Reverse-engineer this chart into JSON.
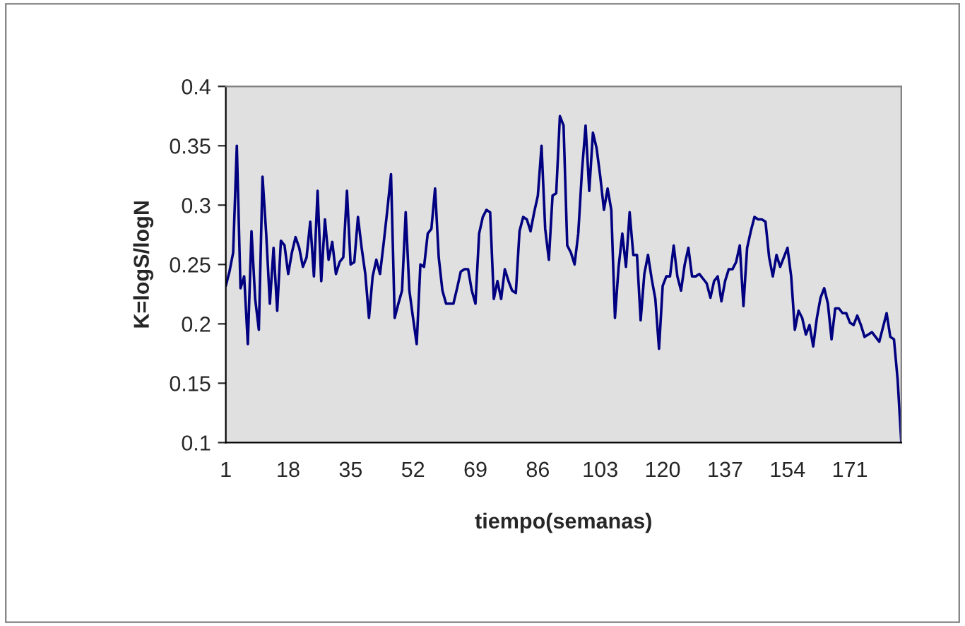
{
  "chart_data": {
    "type": "line",
    "xlabel": "tiempo(semanas)",
    "ylabel": "K=logS/logN",
    "categories": [
      "1",
      null,
      null,
      null,
      null,
      null,
      null,
      null,
      null,
      null,
      null,
      null,
      null,
      null,
      null,
      null,
      null,
      "18",
      null,
      null,
      null,
      null,
      null,
      null,
      null,
      null,
      null,
      null,
      null,
      null,
      null,
      null,
      null,
      null,
      "35",
      null,
      null,
      null,
      null,
      null,
      null,
      null,
      null,
      null,
      null,
      null,
      null,
      null,
      null,
      null,
      null,
      "52",
      null,
      null,
      null,
      null,
      null,
      null,
      null,
      null,
      null,
      null,
      null,
      null,
      null,
      null,
      null,
      null,
      "69",
      null,
      null,
      null,
      null,
      null,
      null,
      null,
      null,
      null,
      null,
      null,
      null,
      null,
      null,
      null,
      null,
      "86",
      null,
      null,
      null,
      null,
      null,
      null,
      null,
      null,
      null,
      null,
      null,
      null,
      null,
      null,
      null,
      null,
      "103",
      null,
      null,
      null,
      null,
      null,
      null,
      null,
      null,
      null,
      null,
      null,
      null,
      null,
      null,
      null,
      null,
      "120",
      null,
      null,
      null,
      null,
      null,
      null,
      null,
      null,
      null,
      null,
      null,
      null,
      null,
      null,
      null,
      null,
      "137",
      null,
      null,
      null,
      null,
      null,
      null,
      null,
      null,
      null,
      null,
      null,
      null,
      null,
      null,
      null,
      null,
      "154",
      null,
      null,
      null,
      null,
      null,
      null,
      null,
      null,
      null,
      null,
      null,
      null,
      null,
      null,
      null,
      null,
      "171",
      null,
      null,
      null,
      null,
      null,
      null,
      null,
      null,
      null,
      null,
      null,
      null,
      null,
      null
    ],
    "series": [
      {
        "color": "#000080",
        "values": [
          0.232,
          0.244,
          0.26,
          0.35,
          0.23,
          0.24,
          0.183,
          0.278,
          0.221,
          0.195,
          0.324,
          0.276,
          0.217,
          0.264,
          0.211,
          0.27,
          0.266,
          0.242,
          0.26,
          0.273,
          0.264,
          0.248,
          0.256,
          0.286,
          0.24,
          0.312,
          0.236,
          0.288,
          0.254,
          0.269,
          0.242,
          0.252,
          0.256,
          0.312,
          0.25,
          0.252,
          0.29,
          0.264,
          0.242,
          0.205,
          0.24,
          0.254,
          0.242,
          0.268,
          0.296,
          0.326,
          0.205,
          0.217,
          0.228,
          0.294,
          0.228,
          0.205,
          0.183,
          0.25,
          0.248,
          0.276,
          0.28,
          0.314,
          0.256,
          0.228,
          0.217,
          0.217,
          0.217,
          0.23,
          0.244,
          0.246,
          0.246,
          0.228,
          0.217,
          0.276,
          0.29,
          0.296,
          0.294,
          0.221,
          0.236,
          0.221,
          0.246,
          0.236,
          0.228,
          0.226,
          0.278,
          0.29,
          0.288,
          0.278,
          0.294,
          0.308,
          0.35,
          0.28,
          0.254,
          0.308,
          0.31,
          0.375,
          0.367,
          0.266,
          0.26,
          0.25,
          0.276,
          0.328,
          0.367,
          0.312,
          0.361,
          0.348,
          0.324,
          0.296,
          0.314,
          0.296,
          0.205,
          0.248,
          0.276,
          0.248,
          0.294,
          0.258,
          0.258,
          0.203,
          0.242,
          0.258,
          0.238,
          0.221,
          0.179,
          0.232,
          0.24,
          0.24,
          0.266,
          0.24,
          0.228,
          0.25,
          0.264,
          0.24,
          0.24,
          0.242,
          0.238,
          0.234,
          0.222,
          0.236,
          0.24,
          0.219,
          0.236,
          0.246,
          0.246,
          0.252,
          0.266,
          0.215,
          0.264,
          0.278,
          0.29,
          0.288,
          0.288,
          0.286,
          0.256,
          0.24,
          0.258,
          0.248,
          0.256,
          0.264,
          0.24,
          0.195,
          0.211,
          0.205,
          0.191,
          0.199,
          0.181,
          0.205,
          0.222,
          0.23,
          0.217,
          0.187,
          0.213,
          0.213,
          0.209,
          0.209,
          0.201,
          0.199,
          0.207,
          0.199,
          0.189,
          0.191,
          0.193,
          0.189,
          0.185,
          0.197,
          0.209,
          0.189,
          0.187,
          0.153,
          0.1
        ]
      }
    ],
    "ylim": [
      0.1,
      0.4
    ],
    "yticks": [
      {
        "value": 0.1,
        "label": "0.1"
      },
      {
        "value": 0.15,
        "label": "0.15"
      },
      {
        "value": 0.2,
        "label": "0.2"
      },
      {
        "value": 0.25,
        "label": "0.25"
      },
      {
        "value": 0.3,
        "label": "0.3"
      },
      {
        "value": 0.35,
        "label": "0.35"
      },
      {
        "value": 0.4,
        "label": "0.4"
      }
    ],
    "grid": false,
    "legend": false,
    "marker": "none",
    "line_style": "solid"
  }
}
